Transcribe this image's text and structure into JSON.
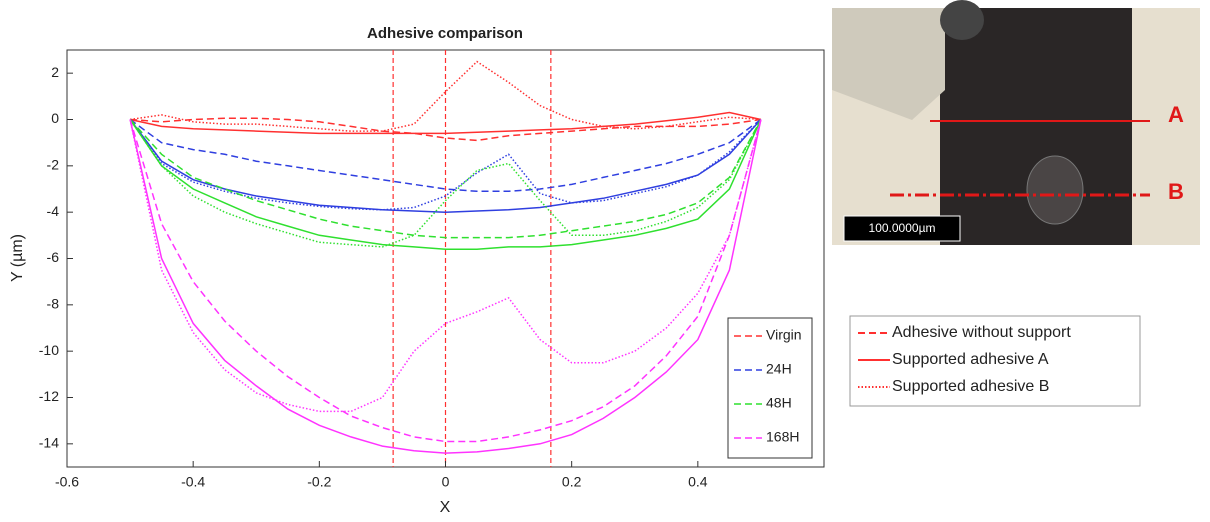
{
  "chart_data": {
    "type": "line",
    "title": "Adhesive comparison",
    "x_label": "X",
    "y_label": "Y (µm)",
    "x": [
      -0.5,
      -0.45,
      -0.4,
      -0.35,
      -0.3,
      -0.25,
      -0.2,
      -0.15,
      -0.1,
      -0.05,
      0,
      0.05,
      0.1,
      0.15,
      0.2,
      0.25,
      0.3,
      0.35,
      0.4,
      0.45,
      0.5
    ],
    "line_styles": [
      {
        "name": "Adhesive without support",
        "dash": "dashed"
      },
      {
        "name": "Supported adhesive A",
        "dash": "solid"
      },
      {
        "name": "Supported adhesive B",
        "dash": "dotted"
      }
    ],
    "series": [
      {
        "name": "Virgin",
        "color": "#ff3030",
        "curves": [
          {
            "values": [
              0,
              -0.1,
              0,
              0.05,
              0.05,
              0,
              -0.1,
              -0.3,
              -0.5,
              -0.6,
              -0.8,
              -0.9,
              -0.7,
              -0.6,
              -0.5,
              -0.4,
              -0.3,
              -0.3,
              -0.3,
              -0.2,
              0
            ]
          },
          {
            "values": [
              0,
              -0.3,
              -0.4,
              -0.45,
              -0.5,
              -0.55,
              -0.6,
              -0.6,
              -0.6,
              -0.6,
              -0.6,
              -0.55,
              -0.5,
              -0.45,
              -0.4,
              -0.3,
              -0.2,
              -0.05,
              0.1,
              0.3,
              0
            ]
          },
          {
            "values": [
              0,
              0.2,
              -0.1,
              -0.2,
              -0.2,
              -0.3,
              -0.4,
              -0.5,
              -0.5,
              -0.2,
              1.2,
              2.5,
              1.6,
              0.6,
              0,
              -0.3,
              -0.4,
              -0.3,
              -0.1,
              0.1,
              0
            ]
          }
        ]
      },
      {
        "name": "24H",
        "color": "#2f3fe0",
        "curves": [
          {
            "values": [
              0,
              -1,
              -1.3,
              -1.5,
              -1.8,
              -2,
              -2.2,
              -2.4,
              -2.6,
              -2.8,
              -3,
              -3.1,
              -3.1,
              -3,
              -2.8,
              -2.5,
              -2.2,
              -1.9,
              -1.5,
              -1,
              0
            ]
          },
          {
            "values": [
              0,
              -1.8,
              -2.6,
              -3,
              -3.3,
              -3.5,
              -3.7,
              -3.8,
              -3.9,
              -3.95,
              -4,
              -3.95,
              -3.9,
              -3.8,
              -3.6,
              -3.4,
              -3.1,
              -2.8,
              -2.4,
              -1.5,
              0
            ]
          },
          {
            "values": [
              0,
              -1.9,
              -2.7,
              -3.1,
              -3.4,
              -3.6,
              -3.75,
              -3.85,
              -3.9,
              -3.8,
              -3.3,
              -2.3,
              -1.5,
              -3.2,
              -3.6,
              -3.5,
              -3.2,
              -2.9,
              -2.4,
              -1.4,
              0
            ]
          }
        ]
      },
      {
        "name": "48H",
        "color": "#2fe02f",
        "curves": [
          {
            "values": [
              0,
              -1.5,
              -2.5,
              -3,
              -3.5,
              -3.9,
              -4.3,
              -4.6,
              -4.8,
              -5,
              -5.1,
              -5.1,
              -5.1,
              -5,
              -4.8,
              -4.6,
              -4.4,
              -4.1,
              -3.6,
              -2.5,
              0
            ]
          },
          {
            "values": [
              0,
              -2,
              -3,
              -3.6,
              -4.2,
              -4.6,
              -5,
              -5.2,
              -5.4,
              -5.5,
              -5.6,
              -5.6,
              -5.5,
              -5.5,
              -5.4,
              -5.2,
              -5,
              -4.7,
              -4.3,
              -3,
              0
            ]
          },
          {
            "values": [
              0,
              -2,
              -3.3,
              -4,
              -4.5,
              -4.9,
              -5.3,
              -5.4,
              -5.5,
              -5,
              -3.5,
              -2.2,
              -1.9,
              -3.5,
              -5,
              -5,
              -4.8,
              -4.4,
              -3.8,
              -2.6,
              0
            ]
          }
        ]
      },
      {
        "name": "168H",
        "color": "#ff33ff",
        "curves": [
          {
            "values": [
              0,
              -4.5,
              -7,
              -8.7,
              -10,
              -11.1,
              -12,
              -12.8,
              -13.3,
              -13.7,
              -13.9,
              -13.9,
              -13.7,
              -13.4,
              -13,
              -12.4,
              -11.5,
              -10.2,
              -8.5,
              -5,
              0
            ]
          },
          {
            "values": [
              0,
              -6,
              -8.8,
              -10.4,
              -11.5,
              -12.5,
              -13.2,
              -13.7,
              -14.1,
              -14.3,
              -14.4,
              -14.35,
              -14.2,
              -14,
              -13.6,
              -12.9,
              -12,
              -10.9,
              -9.5,
              -6.5,
              0
            ]
          },
          {
            "values": [
              0,
              -6.5,
              -9.2,
              -10.8,
              -11.8,
              -12.3,
              -12.6,
              -12.6,
              -12,
              -10,
              -8.8,
              -8.3,
              -7.7,
              -9.5,
              -10.5,
              -10.5,
              -10,
              -9,
              -7.5,
              -5,
              0
            ]
          }
        ]
      }
    ],
    "reference_lines": [
      -0.083,
      0,
      0.167
    ],
    "reference_color": "#ff3030",
    "xlim": [
      -0.6,
      0.6
    ],
    "ylim": [
      -15,
      3
    ],
    "xticks": [
      -0.6,
      -0.4,
      -0.2,
      0,
      0.2,
      0.4
    ],
    "yticks": [
      2,
      0,
      -2,
      -4,
      -6,
      -8,
      -10,
      -12,
      -14
    ]
  },
  "image": {
    "label_a": "A",
    "label_b": "B",
    "scale_bar": "100.0000µm"
  }
}
